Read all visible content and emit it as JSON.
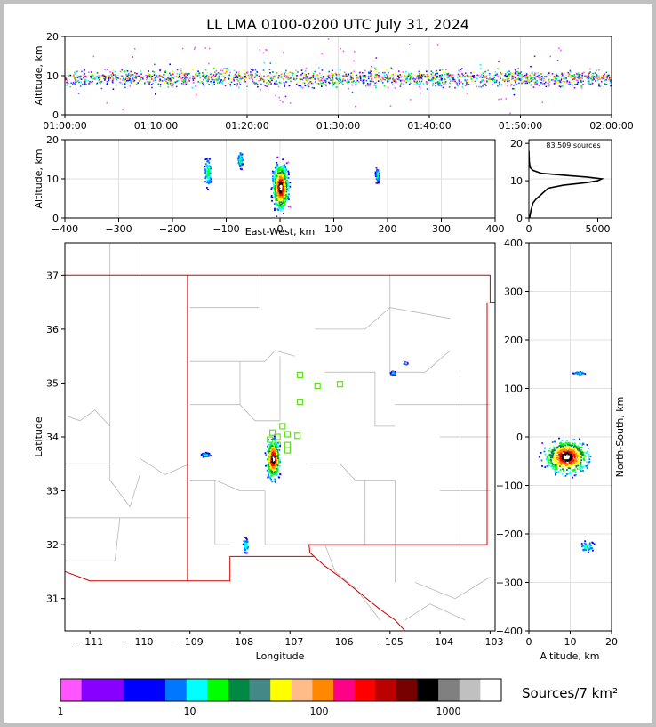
{
  "title": "LL LMA 0100-0200 UTC July 31, 2024",
  "source_count": "83,509 sources",
  "colorbar_label": "Sources/7 km²",
  "colorbar": {
    "colors": [
      "#ff55ff",
      "#8800ff",
      "#8800ff",
      "#0000ff",
      "#0000ff",
      "#0077ff",
      "#00ffff",
      "#00ff00",
      "#008844",
      "#448888",
      "#ffff00",
      "#ffbb88",
      "#ff8800",
      "#ff0088",
      "#ff0000",
      "#bb0000",
      "#770000",
      "#000000",
      "#808080",
      "#c0c0c0",
      "#ffffff"
    ],
    "tick_labels": [
      "1",
      "10",
      "100",
      "1000"
    ]
  },
  "chart_data": [
    {
      "type": "scatter",
      "name": "time-height",
      "ylabel": "Altitude, km",
      "ylim": [
        0,
        20
      ],
      "yticks": [
        "0",
        "10",
        "20"
      ],
      "xticks": [
        "01:00:00",
        "01:10:00",
        "01:20:00",
        "01:30:00",
        "01:40:00",
        "01:50:00",
        "02:00:00"
      ],
      "xlim_minutes": [
        0,
        60
      ],
      "band_altitude_km": [
        3,
        14
      ],
      "grid": true
    },
    {
      "type": "scatter",
      "name": "east-west-altitude",
      "xlabel": "East-West, km",
      "ylabel": "Altitude, km",
      "xlim": [
        -400,
        400
      ],
      "ylim": [
        0,
        20
      ],
      "xticks": [
        "−400",
        "−300",
        "−200",
        "−100",
        "0",
        "100",
        "200",
        "300",
        "400"
      ],
      "yticks": [
        "0",
        "10",
        "20"
      ],
      "clusters_km": [
        {
          "x": -135,
          "z": 12,
          "w": 18,
          "h": 12
        },
        {
          "x": -75,
          "z": 15,
          "w": 12,
          "h": 6
        },
        {
          "x": 0,
          "z": 8,
          "w": 40,
          "h": 16
        },
        {
          "x": 180,
          "z": 11,
          "w": 10,
          "h": 5
        }
      ]
    },
    {
      "type": "line",
      "name": "altitude-histogram",
      "xlim": [
        0,
        6000
      ],
      "ylim": [
        0,
        21
      ],
      "xticks": [
        "0",
        "5000"
      ],
      "yticks": [
        "0",
        "10",
        "20"
      ],
      "profile": [
        [
          50,
          0
        ],
        [
          150,
          2
        ],
        [
          300,
          4
        ],
        [
          500,
          5
        ],
        [
          800,
          6
        ],
        [
          1100,
          7
        ],
        [
          1400,
          8
        ],
        [
          2500,
          8.8
        ],
        [
          4200,
          9.5
        ],
        [
          5000,
          10
        ],
        [
          5300,
          10.5
        ],
        [
          4200,
          11
        ],
        [
          2500,
          11.5
        ],
        [
          900,
          12
        ],
        [
          300,
          12.8
        ],
        [
          100,
          13.5
        ],
        [
          30,
          15
        ],
        [
          0,
          18
        ]
      ]
    },
    {
      "type": "scatter",
      "name": "plan-view-map",
      "xlabel": "Longitude",
      "ylabel": "Latitude",
      "xlim": [
        -111.5,
        -102.9
      ],
      "ylim": [
        30.4,
        37.6
      ],
      "xticks": [
        "−111",
        "−110",
        "−109",
        "−108",
        "−107",
        "−106",
        "−105",
        "−104",
        "−103"
      ],
      "yticks": [
        "31",
        "32",
        "33",
        "34",
        "35",
        "36",
        "37"
      ],
      "stations": [
        [
          -106.8,
          35.15
        ],
        [
          -106.45,
          34.95
        ],
        [
          -106.0,
          34.98
        ],
        [
          -106.8,
          34.65
        ],
        [
          -107.15,
          34.2
        ],
        [
          -107.35,
          34.08
        ],
        [
          -107.05,
          34.05
        ],
        [
          -107.25,
          33.85
        ],
        [
          -107.05,
          33.85
        ],
        [
          -106.85,
          34.02
        ],
        [
          -107.25,
          34.0
        ],
        [
          -107.05,
          33.75
        ],
        [
          -107.4,
          33.95
        ]
      ],
      "clusters": [
        {
          "lon": -107.35,
          "lat": 33.6,
          "w": 0.35,
          "h": 0.95
        },
        {
          "lon": -108.7,
          "lat": 33.68,
          "w": 0.25,
          "h": 0.12
        },
        {
          "lon": -107.9,
          "lat": 32.0,
          "w": 0.18,
          "h": 0.45
        },
        {
          "lon": -104.95,
          "lat": 35.2,
          "w": 0.15,
          "h": 0.1
        },
        {
          "lon": -104.7,
          "lat": 35.38,
          "w": 0.1,
          "h": 0.05
        }
      ]
    },
    {
      "type": "scatter",
      "name": "altitude-north-south",
      "xlabel": "Altitude, km",
      "ylabel": "North-South, km",
      "xlim": [
        0,
        20
      ],
      "ylim": [
        -400,
        400
      ],
      "xticks": [
        "0",
        "10",
        "20"
      ],
      "yticks": [
        "−400",
        "−300",
        "−200",
        "−100",
        "0",
        "100",
        "200",
        "300",
        "400"
      ],
      "clusters_km": [
        {
          "z": 9,
          "y": -40,
          "w": 14,
          "h": 90
        },
        {
          "z": 12,
          "y": 133,
          "w": 4,
          "h": 8
        },
        {
          "z": 14,
          "y": -225,
          "w": 6,
          "h": 30
        }
      ]
    }
  ]
}
